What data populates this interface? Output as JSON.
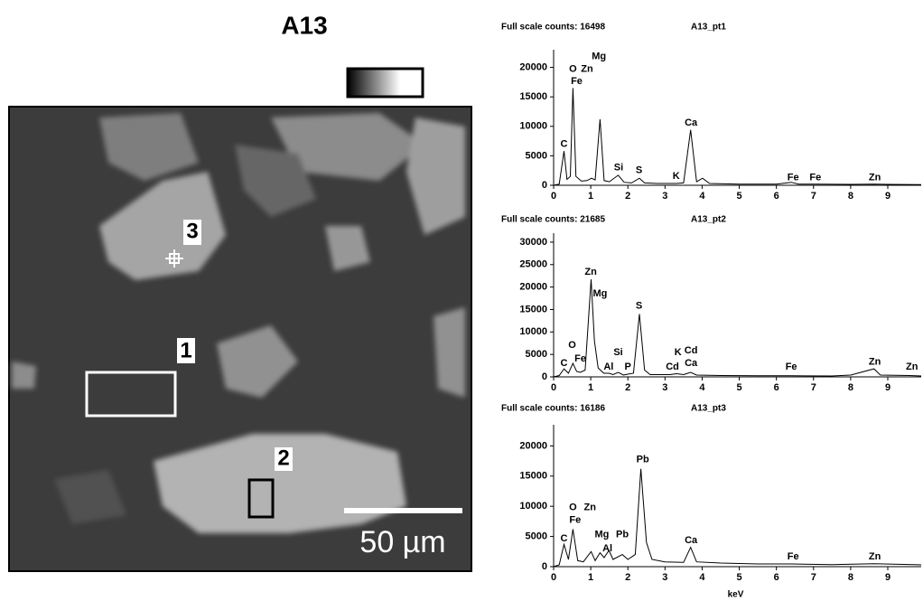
{
  "image": {
    "title": "A13",
    "labels": [
      "1",
      "2",
      "3"
    ],
    "scale_bar": "50 µm"
  },
  "chart_data": [
    {
      "type": "line",
      "title": "Full scale counts: 16498",
      "subtitle": "A13_pt1",
      "color": "#000000",
      "x": [
        0,
        0.15,
        0.28,
        0.36,
        0.45,
        0.52,
        0.6,
        0.75,
        0.9,
        1.02,
        1.12,
        1.25,
        1.36,
        1.5,
        1.74,
        1.9,
        2.1,
        2.31,
        2.45,
        2.8,
        3.3,
        3.5,
        3.69,
        3.85,
        4.01,
        4.2,
        5,
        6,
        6.4,
        6.6,
        7.06,
        8,
        8.63,
        9,
        9.9
      ],
      "values": [
        0,
        200,
        5800,
        1000,
        1500,
        16500,
        1500,
        700,
        800,
        1200,
        900,
        11200,
        800,
        600,
        1700,
        500,
        400,
        1200,
        400,
        300,
        300,
        400,
        9400,
        600,
        1200,
        300,
        200,
        200,
        500,
        200,
        200,
        150,
        200,
        150,
        100
      ],
      "xlim": [
        0,
        9.9
      ],
      "xticks": [
        0,
        1,
        2,
        3,
        4,
        5,
        6,
        7,
        8,
        9
      ],
      "ylim": [
        0,
        23000
      ],
      "yticks": [
        0,
        5000,
        10000,
        15000,
        20000
      ],
      "annotations": [
        {
          "text": "C",
          "x": 0.28,
          "y": 7000
        },
        {
          "text": "O",
          "x": 0.52,
          "y": 19700
        },
        {
          "text": "Zn",
          "x": 0.9,
          "y": 19700
        },
        {
          "text": "Mg",
          "x": 1.22,
          "y": 21800
        },
        {
          "text": "Fe",
          "x": 0.62,
          "y": 17600
        },
        {
          "text": "Si",
          "x": 1.75,
          "y": 3000
        },
        {
          "text": "S",
          "x": 2.3,
          "y": 2500
        },
        {
          "text": "K",
          "x": 3.3,
          "y": 1500
        },
        {
          "text": "Ca",
          "x": 3.7,
          "y": 10600
        },
        {
          "text": "Fe",
          "x": 6.45,
          "y": 1300
        },
        {
          "text": "Fe",
          "x": 7.05,
          "y": 1300
        },
        {
          "text": "Zn",
          "x": 8.65,
          "y": 1300
        }
      ]
    },
    {
      "type": "line",
      "title": "Full scale counts: 21685",
      "subtitle": "A13_pt2",
      "color": "#000000",
      "x": [
        0,
        0.15,
        0.28,
        0.4,
        0.52,
        0.62,
        0.72,
        0.85,
        1.01,
        1.1,
        1.2,
        1.35,
        1.49,
        1.6,
        1.74,
        1.88,
        2.0,
        2.15,
        2.31,
        2.45,
        2.6,
        3.13,
        3.31,
        3.5,
        3.69,
        3.85,
        4.5,
        5.5,
        6.4,
        7.5,
        8.0,
        8.63,
        8.8,
        9.57,
        9.9
      ],
      "values": [
        0,
        300,
        1800,
        800,
        3000,
        1200,
        1000,
        1500,
        21700,
        8000,
        2000,
        800,
        800,
        500,
        1000,
        400,
        600,
        800,
        14000,
        1500,
        500,
        500,
        700,
        500,
        1000,
        400,
        300,
        250,
        250,
        200,
        400,
        1800,
        400,
        300,
        200
      ],
      "xlim": [
        0,
        9.9
      ],
      "xticks": [
        0,
        1,
        2,
        3,
        4,
        5,
        6,
        7,
        8,
        9
      ],
      "ylim": [
        0,
        32000
      ],
      "yticks": [
        0,
        5000,
        10000,
        15000,
        20000,
        25000,
        30000
      ],
      "annotations": [
        {
          "text": "C",
          "x": 0.28,
          "y": 3000
        },
        {
          "text": "O",
          "x": 0.5,
          "y": 7000
        },
        {
          "text": "Fe",
          "x": 0.72,
          "y": 4000
        },
        {
          "text": "Zn",
          "x": 1.0,
          "y": 23300
        },
        {
          "text": "Mg",
          "x": 1.25,
          "y": 18500
        },
        {
          "text": "Al",
          "x": 1.48,
          "y": 2200
        },
        {
          "text": "Si",
          "x": 1.74,
          "y": 5400
        },
        {
          "text": "P",
          "x": 2.0,
          "y": 2200
        },
        {
          "text": "S",
          "x": 2.3,
          "y": 15800
        },
        {
          "text": "K",
          "x": 3.35,
          "y": 5400
        },
        {
          "text": "Cd",
          "x": 3.7,
          "y": 5800
        },
        {
          "text": "Cd",
          "x": 3.2,
          "y": 2200
        },
        {
          "text": "Ca",
          "x": 3.7,
          "y": 3000
        },
        {
          "text": "Fe",
          "x": 6.4,
          "y": 2200
        },
        {
          "text": "Zn",
          "x": 8.65,
          "y": 3300
        },
        {
          "text": "Zn",
          "x": 9.65,
          "y": 2200
        }
      ]
    },
    {
      "type": "line",
      "title": "Full scale counts: 16186",
      "subtitle": "A13_pt3",
      "color": "#000000",
      "xlabel": "keV",
      "x": [
        0,
        0.15,
        0.28,
        0.4,
        0.52,
        0.65,
        0.8,
        1.01,
        1.12,
        1.25,
        1.36,
        1.49,
        1.6,
        1.85,
        2.0,
        2.2,
        2.35,
        2.5,
        2.65,
        3.0,
        3.5,
        3.69,
        3.85,
        4.5,
        5.5,
        6.4,
        7.5,
        8.63,
        9.9
      ],
      "values": [
        0,
        300,
        3700,
        1200,
        6200,
        1000,
        800,
        2500,
        1000,
        2300,
        1500,
        2700,
        1200,
        2000,
        1200,
        2000,
        16200,
        4000,
        1200,
        800,
        700,
        3200,
        800,
        600,
        450,
        450,
        350,
        500,
        300
      ],
      "xlim": [
        0,
        9.9
      ],
      "xticks": [
        0,
        1,
        2,
        3,
        4,
        5,
        6,
        7,
        8,
        9
      ],
      "ylim": [
        0,
        23500
      ],
      "yticks": [
        0,
        5000,
        10000,
        15000,
        20000
      ],
      "annotations": [
        {
          "text": "C",
          "x": 0.28,
          "y": 4600
        },
        {
          "text": "O",
          "x": 0.52,
          "y": 9800
        },
        {
          "text": "Zn",
          "x": 0.98,
          "y": 9800
        },
        {
          "text": "Fe",
          "x": 0.58,
          "y": 7700
        },
        {
          "text": "Mg",
          "x": 1.3,
          "y": 5300
        },
        {
          "text": "Pb",
          "x": 1.85,
          "y": 5300
        },
        {
          "text": "Al",
          "x": 1.45,
          "y": 3000
        },
        {
          "text": "Pb",
          "x": 2.4,
          "y": 17700
        },
        {
          "text": "Ca",
          "x": 3.7,
          "y": 4300
        },
        {
          "text": "Fe",
          "x": 6.45,
          "y": 1600
        },
        {
          "text": "Zn",
          "x": 8.65,
          "y": 1600
        }
      ]
    }
  ]
}
